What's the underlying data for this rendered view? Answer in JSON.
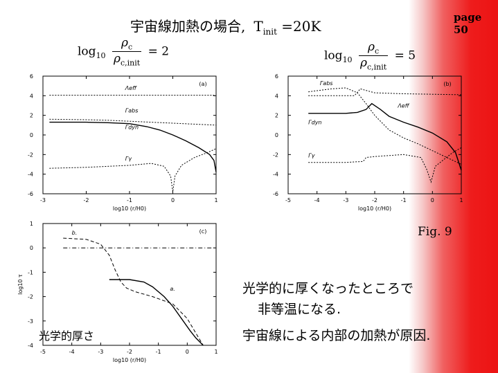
{
  "slide": {
    "title_main": "宇宙線加熱の場合,",
    "title_T": "T",
    "title_sub": "init",
    "title_value": " =20K",
    "page": "page 50",
    "fig_label": "Fig. 9",
    "formula1": {
      "log": "log",
      "logsub": "10",
      "num": "ρ",
      "numsub": "c",
      "den": "ρ",
      "densub": "c,init",
      "rhs": "= 2"
    },
    "formula2": {
      "log": "log",
      "logsub": "10",
      "num": "ρ",
      "numsub": "c",
      "den": "ρ",
      "densub": "c,init",
      "rhs": "= 5"
    },
    "conclusion_line1": "光学的に厚くなったところで",
    "conclusion_line2": "非等温になる.",
    "conclusion_line3": "宇宙線による内部の加熱が原因.",
    "tau_note": "光学的厚さ"
  },
  "chart_data": [
    {
      "type": "line",
      "panel": "(a)",
      "xlabel": "log10 (r/H0)",
      "ylabel": "",
      "xlim": [
        -3,
        1
      ],
      "ylim": [
        -6,
        6
      ],
      "xticks": [
        -3,
        -2,
        -1,
        0,
        1
      ],
      "yticks": [
        -6,
        -4,
        -2,
        0,
        2,
        4,
        6
      ],
      "series": [
        {
          "name": "Λeff",
          "style": "dotted",
          "x": [
            -2.85,
            1.0
          ],
          "y": [
            4.05,
            4.05
          ]
        },
        {
          "name": "Γabs",
          "style": "dotted",
          "x": [
            -2.85,
            -2.0,
            -1.5,
            -1.0,
            -0.5,
            0.0,
            0.5,
            1.0
          ],
          "y": [
            1.6,
            1.55,
            1.5,
            1.4,
            1.3,
            1.2,
            1.1,
            1.0
          ]
        },
        {
          "name": "Γdyn",
          "style": "solid",
          "x": [
            -2.85,
            -2.0,
            -1.5,
            -1.0,
            -0.6,
            -0.3,
            0.0,
            0.3,
            0.6,
            0.85,
            0.95,
            1.0
          ],
          "y": [
            1.3,
            1.3,
            1.25,
            1.15,
            0.85,
            0.5,
            0.0,
            -0.6,
            -1.3,
            -2.0,
            -2.6,
            -3.8
          ]
        },
        {
          "name": "Γγ",
          "style": "dotted",
          "x": [
            -2.85,
            -2.0,
            -1.0,
            -0.5,
            -0.2,
            -0.05,
            0.0,
            0.05,
            0.2,
            0.5,
            0.8,
            1.0
          ],
          "y": [
            -3.4,
            -3.3,
            -3.1,
            -2.9,
            -3.2,
            -4.2,
            -5.8,
            -4.2,
            -3.1,
            -2.3,
            -1.8,
            -1.4
          ]
        }
      ],
      "legend_labels": [
        "Λeff",
        "Γabs",
        "Γdyn",
        "Γγ"
      ]
    },
    {
      "type": "line",
      "panel": "(b)",
      "xlabel": "log10 (r/H0)",
      "ylabel": "",
      "xlim": [
        -5,
        1
      ],
      "ylim": [
        -6,
        6
      ],
      "xticks": [
        -5,
        -4,
        -3,
        -2,
        -1,
        0,
        1
      ],
      "yticks": [
        -6,
        -4,
        -2,
        0,
        2,
        4,
        6
      ],
      "series": [
        {
          "name": "Γabs",
          "style": "dotted",
          "x": [
            -4.3,
            -3.5,
            -3.0,
            -2.6,
            -2.3,
            -2.0,
            -1.5,
            -1.0,
            -0.5,
            0.0,
            0.5,
            1.0
          ],
          "y": [
            4.4,
            4.7,
            4.8,
            4.3,
            3.2,
            2.0,
            0.5,
            -0.3,
            -0.9,
            -1.6,
            -2.3,
            -3.0
          ]
        },
        {
          "name": "Λeff",
          "style": "dotted",
          "x": [
            -4.3,
            -3.0,
            -2.7,
            -2.5,
            -2.0,
            -1.0,
            0.0,
            1.0
          ],
          "y": [
            4.0,
            4.0,
            4.0,
            4.7,
            4.3,
            4.2,
            4.15,
            4.1
          ]
        },
        {
          "name": "Γdyn",
          "style": "solid",
          "x": [
            -4.3,
            -3.0,
            -2.6,
            -2.3,
            -2.1,
            -1.8,
            -1.5,
            -1.0,
            -0.5,
            0.0,
            0.5,
            0.8,
            1.0
          ],
          "y": [
            2.2,
            2.2,
            2.3,
            2.6,
            3.2,
            2.6,
            1.9,
            1.3,
            0.8,
            0.2,
            -0.7,
            -1.8,
            -3.6
          ]
        },
        {
          "name": "Γγ",
          "style": "dotted",
          "x": [
            -4.3,
            -3.0,
            -2.4,
            -2.3,
            -2.0,
            -1.0,
            -0.4,
            -0.2,
            -0.05,
            0.1,
            0.4,
            0.7,
            1.0
          ],
          "y": [
            -2.8,
            -2.8,
            -2.7,
            -2.3,
            -2.2,
            -2.0,
            -2.3,
            -3.5,
            -4.8,
            -3.2,
            -2.5,
            -1.8,
            -1.3
          ]
        }
      ],
      "legend_labels": [
        "Γabs",
        "Λeff",
        "Γdyn",
        "Γγ"
      ]
    },
    {
      "type": "line",
      "panel": "(c)",
      "xlabel": "log10 (r/H0)",
      "ylabel": "log10 τ",
      "xlim": [
        -5,
        1
      ],
      "ylim": [
        -4,
        1
      ],
      "xticks": [
        -5,
        -4,
        -3,
        -2,
        -1,
        0,
        1
      ],
      "yticks": [
        -4,
        -3,
        -2,
        -1,
        0,
        1
      ],
      "series": [
        {
          "name": "b.",
          "style": "dashed",
          "x": [
            -4.3,
            -3.5,
            -3.0,
            -2.7,
            -2.5,
            -2.3,
            -2.1,
            -1.8,
            -1.2,
            -0.5,
            0.0,
            0.3,
            0.55
          ],
          "y": [
            0.4,
            0.35,
            0.15,
            -0.3,
            -0.9,
            -1.4,
            -1.65,
            -1.8,
            -2.0,
            -2.3,
            -2.9,
            -3.5,
            -4.0
          ]
        },
        {
          "name": "a.",
          "style": "solid",
          "x": [
            -2.7,
            -2.0,
            -1.5,
            -1.2,
            -0.8,
            -0.5,
            -0.2,
            0.1,
            0.3,
            0.55
          ],
          "y": [
            -1.3,
            -1.3,
            -1.4,
            -1.6,
            -2.0,
            -2.4,
            -2.9,
            -3.4,
            -3.7,
            -4.0
          ]
        },
        {
          "name": "",
          "style": "dashdot",
          "x": [
            -4.3,
            1.0
          ],
          "y": [
            0.0,
            0.0
          ]
        }
      ],
      "legend_labels": [
        "b.",
        "a."
      ]
    }
  ]
}
